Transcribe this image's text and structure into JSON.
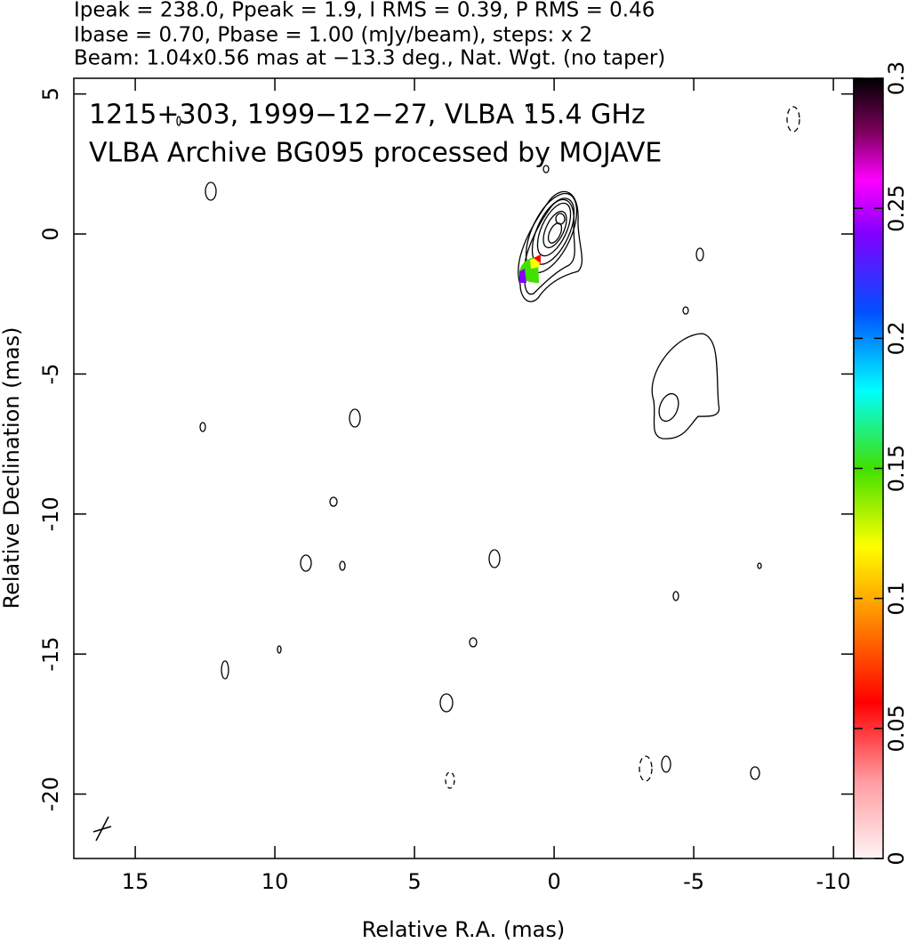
{
  "chart_data": {
    "type": "contour",
    "header_lines": [
      "Ipeak = 238.0, Ppeak = 1.9, I RMS = 0.39, P RMS = 0.46",
      "Ibase = 0.70, Pbase = 1.00 (mJy/beam), steps: x 2",
      "Beam: 1.04x0.56 mas at −13.3 deg., Nat. Wgt. (no taper)"
    ],
    "annotations": [
      "1215+303, 1999−12−27, VLBA 15.4 GHz",
      "VLBA Archive BG095 processed by MOJAVE"
    ],
    "xlabel": "Relative R.A. (mas)",
    "ylabel": "Relative Declination (mas)",
    "xlim": [
      17.2,
      -10.73
    ],
    "ylim": [
      -22.3,
      5.56
    ],
    "xticks": [
      15,
      10,
      5,
      0,
      -5,
      -10
    ],
    "yticks": [
      5,
      0,
      -5,
      -10,
      -15,
      -20
    ],
    "colorbar_lim": [
      0,
      0.3
    ],
    "colorbar_ticks": [
      0,
      0.05,
      0.1,
      0.15,
      0.2,
      0.25,
      0.3
    ]
  }
}
